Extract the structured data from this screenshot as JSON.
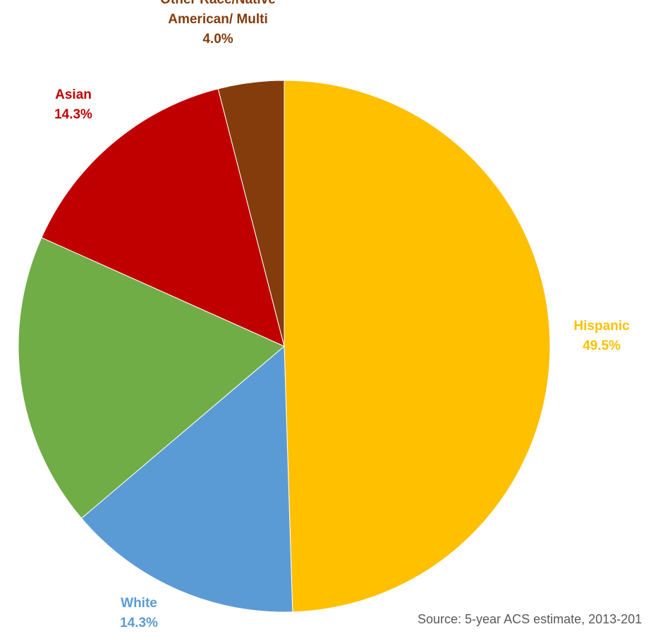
{
  "chart_data": {
    "type": "pie",
    "start_angle_deg": 0,
    "direction": "clockwise",
    "slices": [
      {
        "name": "Hispanic",
        "label_lines": [
          "Hispanic"
        ],
        "value": 49.5,
        "value_label": "49.5%",
        "color": "#FFC000",
        "label_color": "#FFC000"
      },
      {
        "name": "White",
        "label_lines": [
          "White"
        ],
        "value": 14.3,
        "value_label": "14.3%",
        "color": "#5B9BD5",
        "label_color": "#5B9BD5"
      },
      {
        "name": "",
        "label_lines": [],
        "value": 17.9,
        "value_label": "",
        "color": "#70AD47",
        "label_color": "#70AD47"
      },
      {
        "name": "Asian",
        "label_lines": [
          "Asian"
        ],
        "value": 14.3,
        "value_label": "14.3%",
        "color": "#C00000",
        "label_color": "#C00000"
      },
      {
        "name": "Other Race/Native American/ Multi",
        "label_lines": [
          "Other Race/Native",
          "American/ Multi"
        ],
        "value": 4.0,
        "value_label": "4.0%",
        "color": "#843C0C",
        "label_color": "#843C0C"
      }
    ]
  },
  "source_text": "Source: 5-year ACS estimate, 2013-201"
}
